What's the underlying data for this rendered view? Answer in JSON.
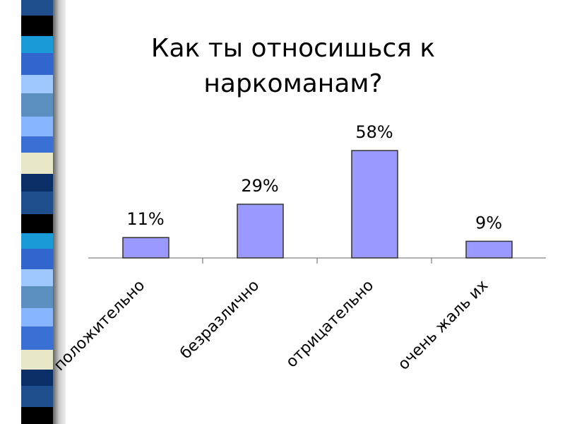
{
  "chart_data": {
    "type": "bar",
    "title_lines": [
      "Как ты относишься к",
      "наркоманам?"
    ],
    "categories": [
      "положительно",
      "безразлично",
      "отрицательно",
      "очень жаль их"
    ],
    "values": [
      11,
      29,
      58,
      9
    ],
    "value_labels": [
      "11%",
      "29%",
      "58%",
      "9%"
    ],
    "color": "#9999ff"
  }
}
